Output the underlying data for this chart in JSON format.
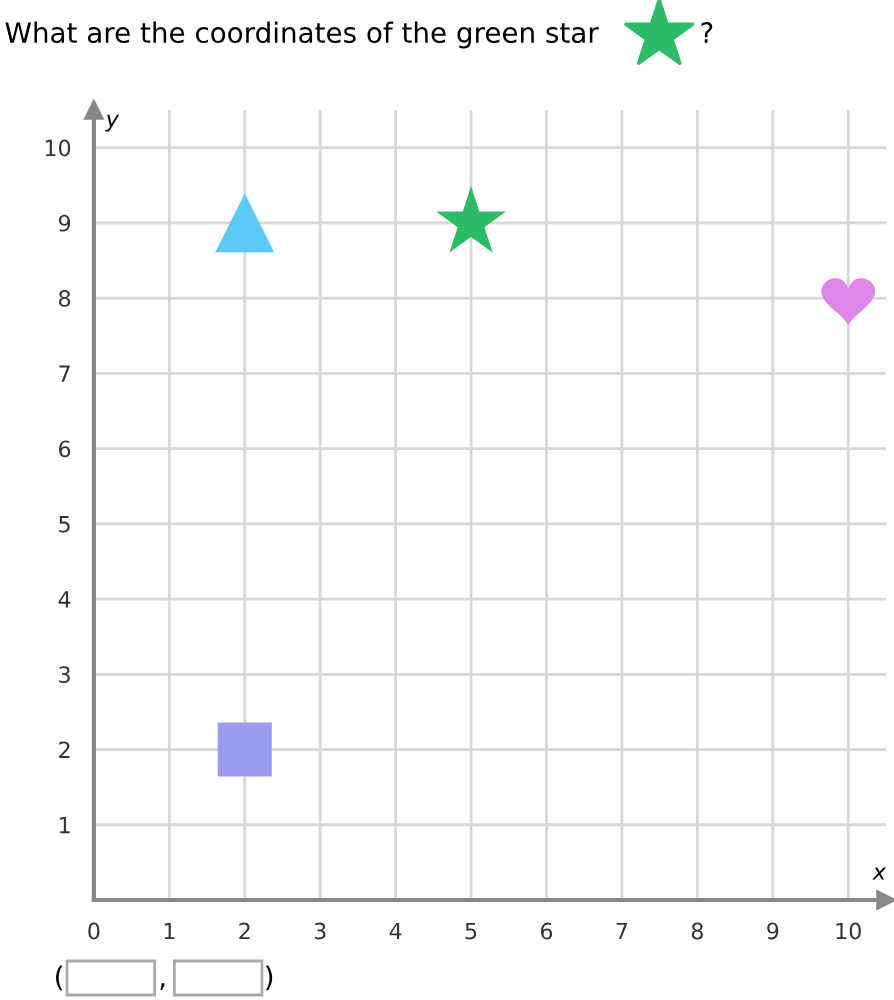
{
  "chart_data": {
    "type": "scatter",
    "title": "What are the coordinates of the green star",
    "xlabel": "x",
    "ylabel": "y",
    "series": [
      {
        "color": "#5bc8f5",
        "marker": "triangle",
        "x": [
          2
        ],
        "values": [
          9
        ]
      },
      {
        "color": "#2dbb66",
        "marker": "star",
        "x": [
          5
        ],
        "values": [
          9
        ]
      },
      {
        "color": "#dd88e8",
        "x": [
          10
        ],
        "values": [
          8
        ]
      },
      {
        "color": "#9b9bef",
        "marker": "square",
        "x": [
          2
        ],
        "values": [
          2
        ]
      }
    ],
    "xlim": [
      0,
      10.5
    ],
    "ylim": [
      0,
      10.5
    ],
    "xticks": [
      0,
      1,
      2,
      3,
      4,
      5,
      6,
      7,
      8,
      9,
      10
    ],
    "yticks": [
      1,
      2,
      3,
      4,
      5,
      6,
      7,
      8,
      9,
      10
    ],
    "grid": true,
    "annotations": [
      "?",
      "(",
      ",",
      ")"
    ]
  }
}
